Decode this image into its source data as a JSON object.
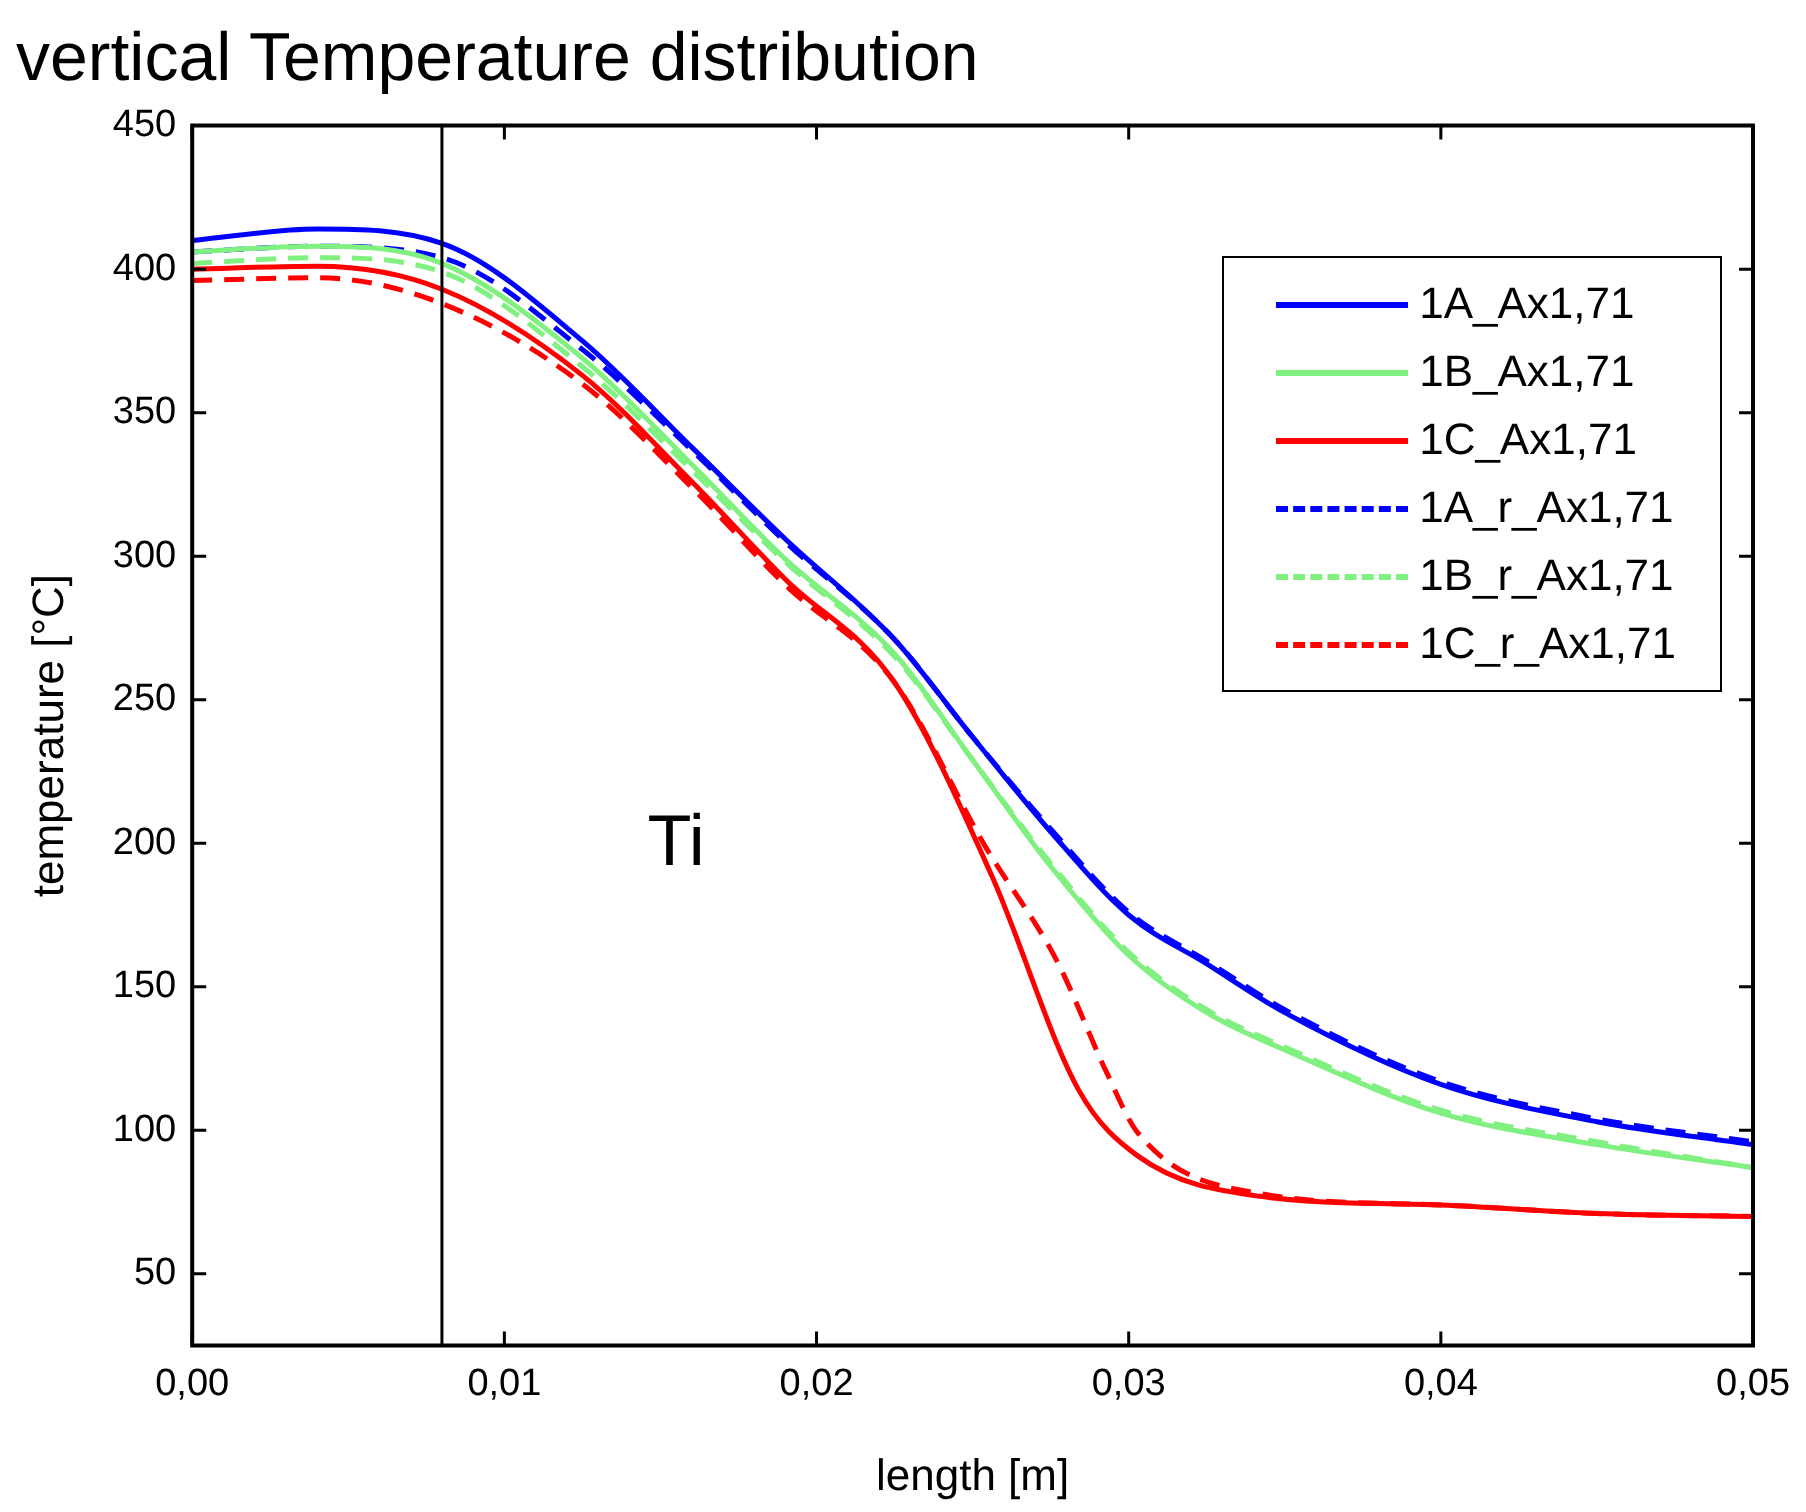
{
  "chart_data": {
    "type": "line",
    "title": "vertical Temperature distribution",
    "xlabel": "length [m]",
    "ylabel": "temperature [°C]",
    "xlim": [
      0,
      0.05
    ],
    "xticks": [
      {
        "value": 0,
        "label": "0,00"
      },
      {
        "value": 0.01,
        "label": "0,01"
      },
      {
        "value": 0.02,
        "label": "0,02"
      },
      {
        "value": 0.03,
        "label": "0,03"
      },
      {
        "value": 0.04,
        "label": "0,04"
      },
      {
        "value": 0.05,
        "label": "0,05"
      }
    ],
    "ylim": [
      25,
      450
    ],
    "yticks": [
      50,
      100,
      150,
      200,
      250,
      300,
      350,
      400,
      450
    ],
    "grid": false,
    "legend": "top right",
    "marker": "none",
    "series": [
      {
        "name": "1A_Ax1,71",
        "color": "#0000ff",
        "line_style": "solid",
        "x": [
          0,
          0.004,
          0.008,
          0.0125,
          0.016,
          0.019,
          0.0225,
          0.025,
          0.0275,
          0.03,
          0.0325,
          0.035,
          0.04,
          0.045,
          0.05
        ],
        "values": [
          410,
          414,
          409,
          375,
          338,
          306,
          271,
          237,
          204,
          175,
          158,
          141,
          116,
          103,
          95
        ]
      },
      {
        "name": "1B_Ax1,71",
        "color": "#80f080",
        "line_style": "solid",
        "x": [
          0,
          0.004,
          0.008,
          0.0125,
          0.016,
          0.019,
          0.0225,
          0.025,
          0.0275,
          0.03,
          0.0325,
          0.035,
          0.04,
          0.045,
          0.05
        ],
        "values": [
          406,
          408,
          402,
          369,
          332,
          299,
          266,
          229,
          192,
          161,
          141,
          128,
          106,
          95,
          87
        ]
      },
      {
        "name": "1C_Ax1,71",
        "color": "#ff0000",
        "line_style": "solid",
        "x": [
          0,
          0.004,
          0.008,
          0.0125,
          0.016,
          0.019,
          0.0225,
          0.0256,
          0.0284,
          0.0303,
          0.0342,
          0.04,
          0.045,
          0.05
        ],
        "values": [
          400,
          401,
          393,
          363,
          326,
          292,
          256,
          189,
          114,
          91,
          77,
          74,
          71,
          70
        ]
      },
      {
        "name": "1A_r_Ax1,71",
        "color": "#0000ff",
        "line_style": "dashed",
        "x": [
          0,
          0.004,
          0.008,
          0.0125,
          0.016,
          0.019,
          0.0225,
          0.025,
          0.0275,
          0.03,
          0.0325,
          0.035,
          0.04,
          0.045,
          0.05
        ],
        "values": [
          406,
          408,
          404,
          372,
          337,
          305,
          271,
          237,
          205,
          176,
          159,
          142,
          117,
          104,
          96
        ]
      },
      {
        "name": "1B_r_Ax1,71",
        "color": "#80f080",
        "line_style": "dashed",
        "x": [
          0,
          0.004,
          0.008,
          0.0125,
          0.016,
          0.019,
          0.0225,
          0.025,
          0.0275,
          0.03,
          0.0325,
          0.035,
          0.04,
          0.045,
          0.05
        ],
        "values": [
          402,
          404,
          399,
          366,
          330,
          298,
          265,
          229,
          193,
          162,
          142,
          129,
          107,
          96,
          87
        ]
      },
      {
        "name": "1C_r_Ax1,71",
        "color": "#ff0000",
        "line_style": "dashed",
        "x": [
          0,
          0.004,
          0.008,
          0.0125,
          0.016,
          0.019,
          0.0225,
          0.0254,
          0.0277,
          0.0293,
          0.0303,
          0.0342,
          0.04,
          0.045,
          0.05
        ],
        "values": [
          396,
          397,
          388,
          360,
          324,
          290,
          256,
          199,
          159,
          120,
          99,
          78,
          74,
          71,
          70
        ]
      }
    ],
    "ref_lines": [
      {
        "axis": "x",
        "value": 0.008,
        "color": "#000000"
      }
    ],
    "annotations": [
      "Ti"
    ]
  }
}
